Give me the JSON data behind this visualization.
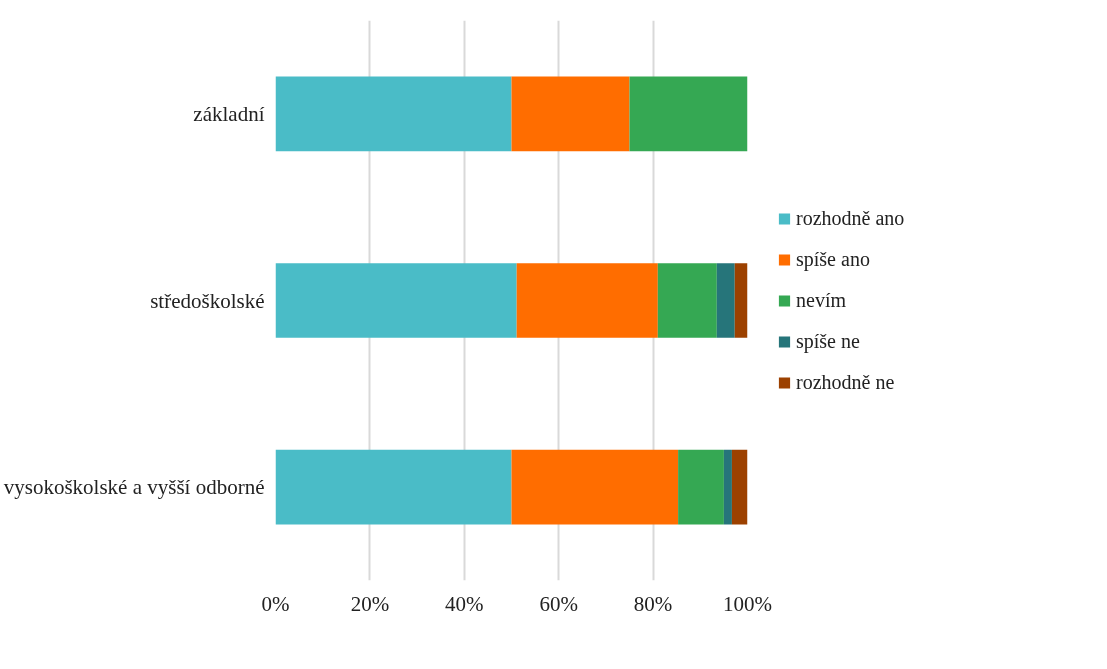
{
  "chart_data": {
    "type": "bar",
    "orientation": "horizontal",
    "stacked": true,
    "categories": [
      "základní",
      "středoškolské",
      "vysokoškolské a vyšší odborné"
    ],
    "series": [
      {
        "name": "rozhodně ano",
        "color": "#4abcc7",
        "values": [
          50,
          51.1,
          50
        ]
      },
      {
        "name": "spíše ano",
        "color": "#ff6d00",
        "values": [
          25,
          29.9,
          35.3
        ]
      },
      {
        "name": "nevím",
        "color": "#35a853",
        "values": [
          25,
          12.5,
          9.7
        ]
      },
      {
        "name": "spíše ne",
        "color": "#26757a",
        "values": [
          0,
          3.8,
          1.7
        ]
      },
      {
        "name": "rozhodně ne",
        "color": "#9c4100",
        "values": [
          0,
          2.7,
          3.3
        ]
      }
    ],
    "xlim": [
      0,
      100
    ],
    "xticks": [
      {
        "value": 0,
        "label": "0%"
      },
      {
        "value": 20,
        "label": "20%"
      },
      {
        "value": 40,
        "label": "40%"
      },
      {
        "value": 60,
        "label": "60%"
      },
      {
        "value": 80,
        "label": "80%"
      },
      {
        "value": 100,
        "label": "100%"
      }
    ],
    "grid": "x",
    "legend": "right"
  }
}
